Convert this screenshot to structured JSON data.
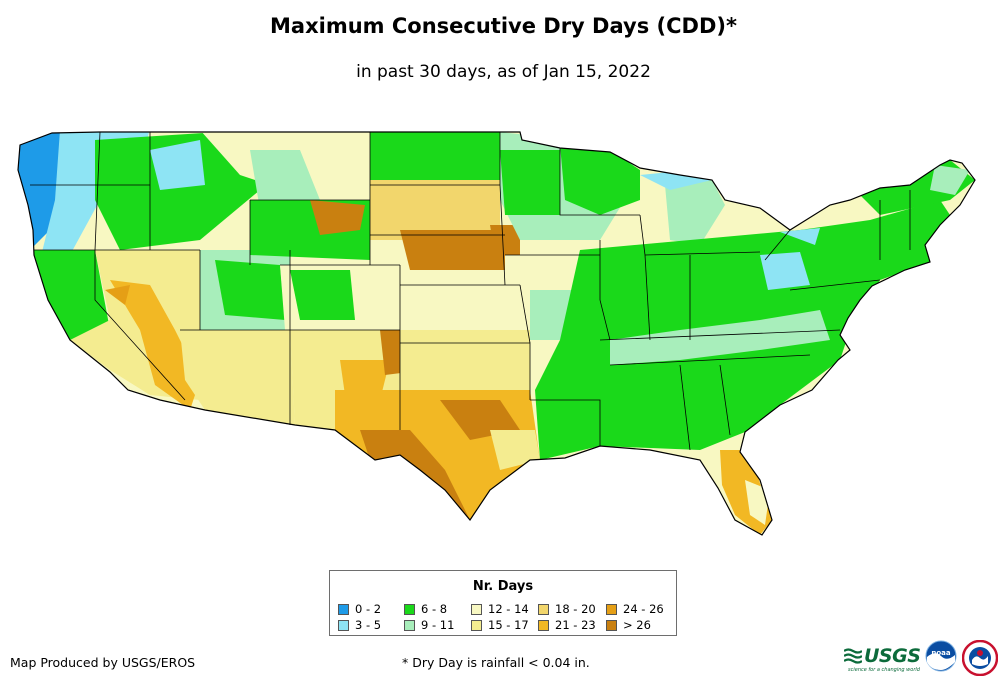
{
  "title": "Maximum Consecutive Dry Days (CDD)*",
  "subtitle": "in past 30 days, as of Jan 15, 2022",
  "legend": {
    "title": "Nr. Days",
    "items": [
      {
        "label": "0 - 2",
        "color": "#1e9be8"
      },
      {
        "label": "3 - 5",
        "color": "#8ee4f4"
      },
      {
        "label": "6 - 8",
        "color": "#1ad91a"
      },
      {
        "label": "9 - 11",
        "color": "#a8eebb"
      },
      {
        "label": "12 - 14",
        "color": "#f8f8c2"
      },
      {
        "label": "15 - 17",
        "color": "#f4ec90"
      },
      {
        "label": "18 - 20",
        "color": "#f2d66c"
      },
      {
        "label": "21 - 23",
        "color": "#f2b824"
      },
      {
        "label": "24 - 26",
        "color": "#e59f16"
      },
      {
        "label": "> 26",
        "color": "#c98010"
      }
    ]
  },
  "credit": "Map Produced by USGS/EROS",
  "footnote": "* Dry Day is rainfall < 0.04 in.",
  "logos": {
    "usgs": "USGS",
    "usgs_tagline": "science for a changing world",
    "noaa": "noaa"
  }
}
